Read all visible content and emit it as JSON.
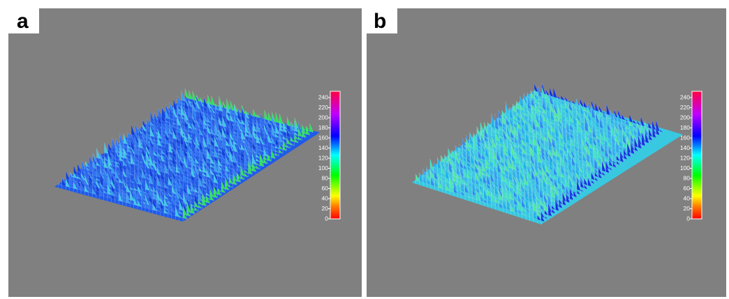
{
  "panels": [
    {
      "label": "a",
      "colorbar": {
        "ticks": [
          0,
          20,
          40,
          60,
          80,
          100,
          120,
          140,
          160,
          180,
          200,
          220,
          240
        ]
      }
    },
    {
      "label": "b",
      "colorbar": {
        "ticks": [
          0,
          20,
          40,
          60,
          80,
          100,
          120,
          140,
          160,
          180,
          200,
          220,
          240
        ]
      }
    }
  ]
}
